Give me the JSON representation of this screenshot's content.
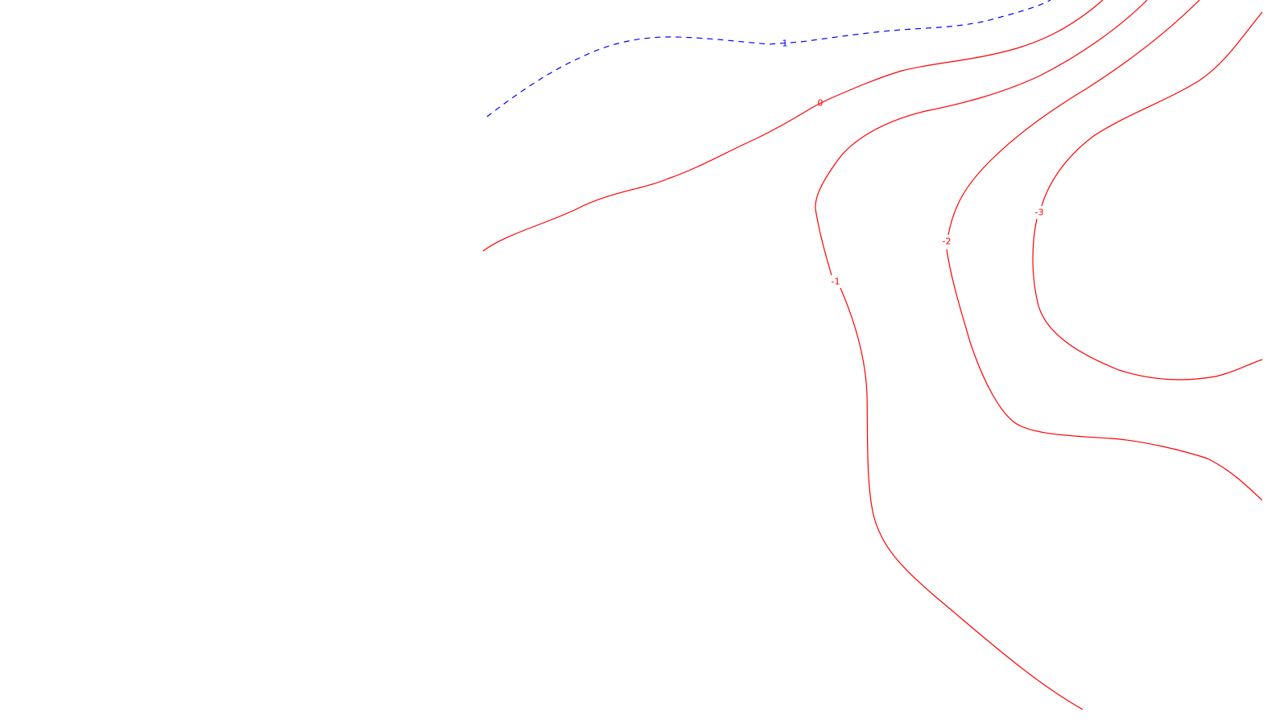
{
  "contour_map": {
    "background": "#ffffff",
    "colors": {
      "positive": "#0000ff",
      "zero_negative": "#ff0000"
    },
    "contours": [
      {
        "id": "c-plus-1",
        "level": 1,
        "label": "1",
        "style": "dashed",
        "color": "#0000ff"
      },
      {
        "id": "c-zero",
        "level": 0,
        "label": "0",
        "style": "solid",
        "color": "#ff0000"
      },
      {
        "id": "c-minus-1",
        "level": -1,
        "label": "-1",
        "style": "solid",
        "color": "#ff0000"
      },
      {
        "id": "c-minus-2",
        "level": -2,
        "label": "-2",
        "style": "solid",
        "color": "#ff0000"
      },
      {
        "id": "c-minus-3",
        "level": -3,
        "label": "-3",
        "style": "solid",
        "color": "#ff0000"
      }
    ]
  }
}
